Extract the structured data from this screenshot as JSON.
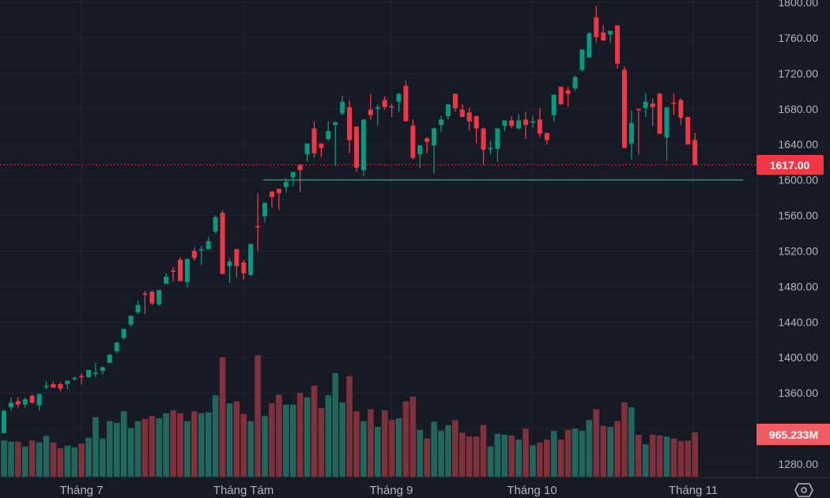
{
  "chart_data": {
    "type": "candlestick",
    "title": "",
    "xlabel": "",
    "ylabel": "",
    "x_tick_labels": [
      "Tháng 7",
      "Tháng Tám",
      "Tháng 9",
      "Tháng 10",
      "Tháng 11"
    ],
    "y_tick_labels": [
      "1800.00",
      "1760.00",
      "1720.00",
      "1680.00",
      "1640.00",
      "1600.00",
      "1560.00",
      "1520.00",
      "1480.00",
      "1440.00",
      "1400.00",
      "1360.00",
      "1280.00"
    ],
    "y_ticks": [
      1800,
      1760,
      1720,
      1680,
      1640,
      1600,
      1560,
      1520,
      1480,
      1440,
      1400,
      1360,
      1280
    ],
    "ylim": [
      1280,
      1800
    ],
    "grid": true,
    "last_price": 1617,
    "last_price_label": "1617.00",
    "last_volume_label": "965.233M",
    "horizontal_line_level": 1600,
    "colors": {
      "up": "#089981",
      "down": "#f23645",
      "volume_up": "#22675e",
      "volume_down": "#7f323b",
      "background": "#161a25",
      "grid": "#232632",
      "hline": "#1a9a83"
    },
    "ohlc_fields": [
      "open",
      "high",
      "low",
      "close"
    ],
    "ohlc": [
      [
        1315,
        1341,
        1314,
        1340
      ],
      [
        1344,
        1355,
        1340,
        1349
      ],
      [
        1351,
        1355,
        1343,
        1347
      ],
      [
        1347,
        1355,
        1343,
        1353
      ],
      [
        1357,
        1358,
        1348,
        1349
      ],
      [
        1346,
        1359,
        1340,
        1359
      ],
      [
        1367,
        1373,
        1364,
        1368
      ],
      [
        1370,
        1373,
        1366,
        1366
      ],
      [
        1370,
        1372,
        1362,
        1365
      ],
      [
        1370,
        1374,
        1364,
        1374
      ],
      [
        1376,
        1379,
        1374,
        1377
      ],
      [
        1379,
        1382,
        1370,
        1378
      ],
      [
        1378,
        1386,
        1377,
        1386
      ],
      [
        1382,
        1394,
        1378,
        1383
      ],
      [
        1385,
        1390,
        1381,
        1389
      ],
      [
        1394,
        1404,
        1394,
        1403
      ],
      [
        1407,
        1417,
        1405,
        1417
      ],
      [
        1422,
        1433,
        1420,
        1432
      ],
      [
        1437,
        1447,
        1435,
        1447
      ],
      [
        1451,
        1464,
        1449,
        1459
      ],
      [
        1472,
        1475,
        1449,
        1471
      ],
      [
        1474,
        1476,
        1459,
        1461
      ],
      [
        1460,
        1476,
        1458,
        1476
      ],
      [
        1483,
        1495,
        1483,
        1491
      ],
      [
        1498,
        1502,
        1486,
        1497
      ],
      [
        1510,
        1513,
        1486,
        1486
      ],
      [
        1485,
        1511,
        1479,
        1511
      ],
      [
        1520,
        1524,
        1509,
        1512
      ],
      [
        1521,
        1526,
        1504,
        1522
      ],
      [
        1522,
        1536,
        1522,
        1531
      ],
      [
        1542,
        1560,
        1540,
        1558
      ],
      [
        1563,
        1566,
        1494,
        1494
      ],
      [
        1503,
        1512,
        1484,
        1508
      ],
      [
        1522,
        1522,
        1490,
        1503
      ],
      [
        1507,
        1510,
        1488,
        1495
      ],
      [
        1493,
        1528,
        1492,
        1528
      ],
      [
        1548,
        1585,
        1520,
        1547
      ],
      [
        1559,
        1575,
        1552,
        1574
      ],
      [
        1587,
        1587,
        1569,
        1581
      ],
      [
        1590,
        1590,
        1566,
        1585
      ],
      [
        1592,
        1602,
        1586,
        1598
      ],
      [
        1603,
        1609,
        1593,
        1609
      ],
      [
        1617,
        1618,
        1586,
        1611
      ],
      [
        1629,
        1641,
        1621,
        1641
      ],
      [
        1658,
        1666,
        1625,
        1630
      ],
      [
        1641,
        1641,
        1626,
        1636
      ],
      [
        1646,
        1666,
        1644,
        1655
      ],
      [
        1662,
        1666,
        1616,
        1665
      ],
      [
        1675,
        1695,
        1673,
        1688
      ],
      [
        1682,
        1690,
        1630,
        1645
      ],
      [
        1660,
        1660,
        1609,
        1614
      ],
      [
        1611,
        1668,
        1604,
        1668
      ],
      [
        1679,
        1697,
        1668,
        1673
      ],
      [
        1680,
        1685,
        1661,
        1682
      ],
      [
        1690,
        1694,
        1679,
        1682
      ],
      [
        1683,
        1686,
        1671,
        1682
      ],
      [
        1688,
        1698,
        1676,
        1697
      ],
      [
        1706,
        1712,
        1666,
        1666
      ],
      [
        1661,
        1668,
        1623,
        1625
      ],
      [
        1629,
        1639,
        1613,
        1639
      ],
      [
        1647,
        1648,
        1630,
        1643
      ],
      [
        1639,
        1659,
        1607,
        1658
      ],
      [
        1662,
        1672,
        1654,
        1668
      ],
      [
        1672,
        1686,
        1668,
        1685
      ],
      [
        1697,
        1697,
        1677,
        1681
      ],
      [
        1679,
        1685,
        1671,
        1671
      ],
      [
        1676,
        1681,
        1655,
        1666
      ],
      [
        1672,
        1672,
        1641,
        1658
      ],
      [
        1658,
        1659,
        1617,
        1634
      ],
      [
        1635,
        1644,
        1629,
        1636
      ],
      [
        1635,
        1658,
        1620,
        1658
      ],
      [
        1661,
        1667,
        1655,
        1667
      ],
      [
        1667,
        1672,
        1658,
        1661
      ],
      [
        1658,
        1674,
        1657,
        1667
      ],
      [
        1668,
        1677,
        1646,
        1662
      ],
      [
        1665,
        1672,
        1659,
        1666
      ],
      [
        1668,
        1681,
        1648,
        1652
      ],
      [
        1653,
        1653,
        1640,
        1645
      ],
      [
        1673,
        1696,
        1666,
        1696
      ],
      [
        1705,
        1705,
        1685,
        1685
      ],
      [
        1701,
        1705,
        1682,
        1697
      ],
      [
        1703,
        1718,
        1700,
        1716
      ],
      [
        1724,
        1747,
        1722,
        1747
      ],
      [
        1738,
        1767,
        1737,
        1765
      ],
      [
        1783,
        1796,
        1755,
        1761
      ],
      [
        1766,
        1774,
        1757,
        1757
      ],
      [
        1764,
        1768,
        1755,
        1768
      ],
      [
        1774,
        1774,
        1725,
        1731
      ],
      [
        1724,
        1728,
        1636,
        1636
      ],
      [
        1641,
        1678,
        1623,
        1664
      ],
      [
        1680,
        1680,
        1629,
        1679
      ],
      [
        1681,
        1698,
        1671,
        1688
      ],
      [
        1686,
        1692,
        1661,
        1682
      ],
      [
        1697,
        1698,
        1652,
        1652
      ],
      [
        1648,
        1682,
        1622,
        1682
      ],
      [
        1687,
        1697,
        1673,
        1686
      ],
      [
        1690,
        1692,
        1662,
        1670
      ],
      [
        1671,
        1671,
        1640,
        1640
      ],
      [
        1645,
        1653,
        1617,
        1617
      ]
    ],
    "volume_unit": "M",
    "volume": [
      788,
      764,
      764,
      660,
      788,
      747,
      891,
      747,
      621,
      678,
      638,
      724,
      850,
      1298,
      833,
      1212,
      1172,
      1426,
      1064,
      1212,
      1259,
      1322,
      1276,
      1384,
      1448,
      1384,
      1212,
      1426,
      1384,
      1402,
      1771,
      2603,
      1598,
      1643,
      1367,
      1212,
      2643,
      1322,
      1598,
      1788,
      1574,
      1574,
      1827,
      1729,
      1983,
      1495,
      1771,
      2258,
      1621,
      2195,
      1426,
      1212,
      1471,
      1086,
      1448,
      1236,
      1276,
      1643,
      1746,
      1022,
      833,
      1195,
      1005,
      1126,
      1236,
      960,
      874,
      874,
      1126,
      660,
      936,
      914,
      896,
      810,
      1046,
      684,
      746,
      810,
      1000,
      810,
      1022,
      1046,
      1000,
      1236,
      1471,
      1109,
      1086,
      1212,
      1621,
      1512,
      914,
      702,
      914,
      896,
      874,
      833,
      771,
      788,
      965.233
    ]
  },
  "ui": {
    "settings_icon": "gear-icon"
  }
}
